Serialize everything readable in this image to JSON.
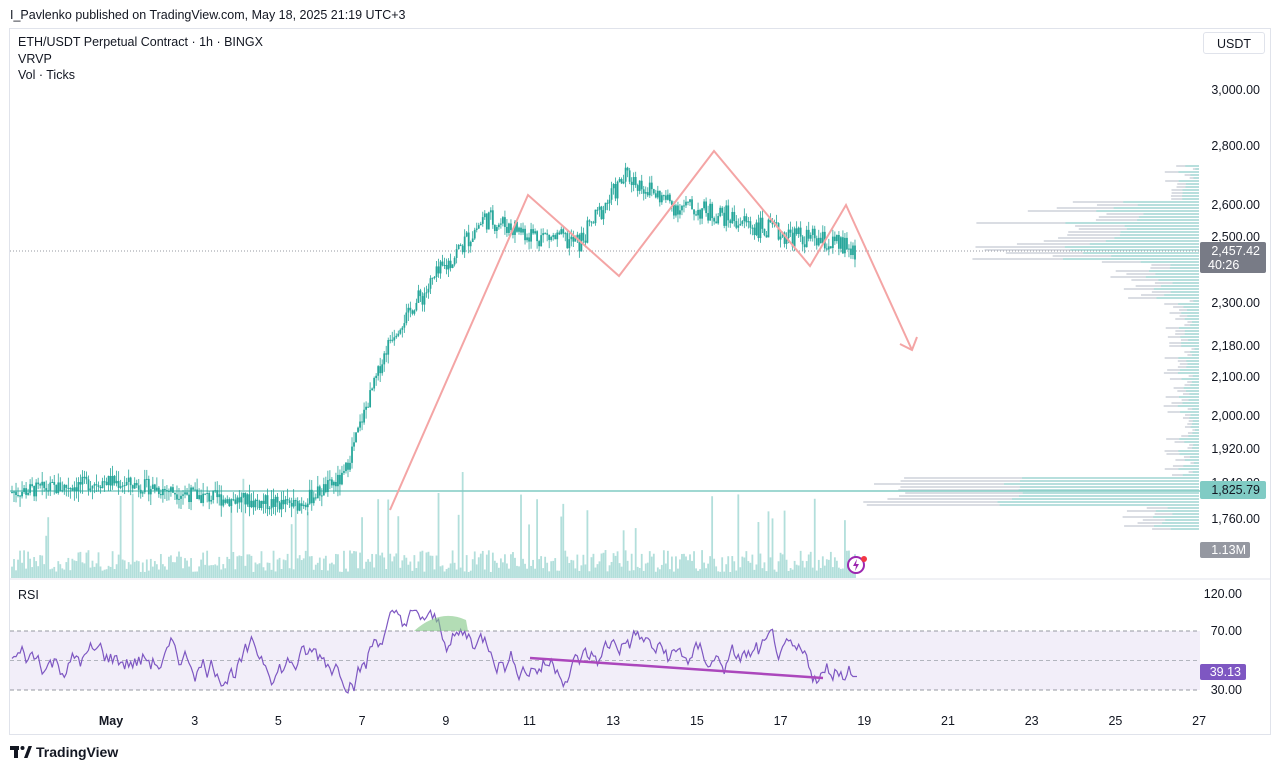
{
  "header": {
    "publisher": "I_Pavlenko published on TradingView.com, May 18, 2025 21:19 UTC+3"
  },
  "legend": {
    "symbol": "ETH/USDT Perpetual Contract · 1h · BINGX",
    "indicator1": "VRVP",
    "indicator2": "Vol · Ticks"
  },
  "toolbar": {
    "currency": "USDT"
  },
  "footer": {
    "brand": "TradingView"
  },
  "rsi_panel": {
    "label": "RSI",
    "value_label": "39.13"
  },
  "price_axis": {
    "ticks": [
      "3,000.00",
      "2,800.00",
      "2,600.00",
      "2,500.00",
      "2,300.00",
      "2,180.00",
      "2,100.00",
      "2,000.00",
      "1,920.00",
      "1,840.00",
      "1,760.00"
    ],
    "current_price": "2,457.42",
    "countdown": "40:26",
    "level_label": "1,825.79",
    "volume_label": "1.13M",
    "rsi_ticks": [
      "120.00",
      "70.00",
      "30.00"
    ]
  },
  "time_axis": {
    "ticks": [
      "May",
      "3",
      "5",
      "7",
      "9",
      "11",
      "13",
      "15",
      "17",
      "19",
      "21",
      "23",
      "25",
      "27"
    ]
  },
  "colors": {
    "candle": "#26a69a",
    "volume": "#b2dfdb",
    "pattern": "#f4a5a5",
    "level": "#80cbc4",
    "rsi_line": "#7e57c2",
    "divergence": "#ab47bc",
    "price_badge": "#787b86",
    "rsi_badge": "#7e57c2"
  },
  "chart_data": {
    "type": "line",
    "series": [
      {
        "values_x": [
          "May 1",
          "May 2",
          "May 3",
          "May 4",
          "May 5",
          "May 6",
          "May 7",
          "May 8",
          "May 9",
          "May 10",
          "May 11",
          "May 12",
          "May 13",
          "May 14",
          "May 15",
          "May 16",
          "May 17",
          "May 18",
          "May 18 21:00"
        ],
        "close": [
          1820,
          1830,
          1845,
          1830,
          1810,
          1800,
          1790,
          1850,
          2200,
          2380,
          2560,
          2510,
          2480,
          2700,
          2600,
          2570,
          2520,
          2490,
          2457.42
        ]
      }
    ],
    "pattern_points": [
      [
        "May 8",
        1770
      ],
      [
        "May 11",
        2650
      ],
      [
        "May 12.8",
        2420
      ],
      [
        "May 15.3",
        2780
      ],
      [
        "May 17.4",
        2440
      ],
      [
        "May 18.6",
        2600
      ],
      [
        "May 20.5",
        2170
      ]
    ],
    "support_level": 1825.79,
    "rsi": {
      "overbought": 70,
      "oversold": 30,
      "last": 39.13,
      "divergence": [
        [
          "May 11",
          52
        ],
        [
          "May 18",
          34
        ]
      ]
    },
    "ylim": [
      1700,
      3100
    ],
    "yscale": "log",
    "grid": false
  }
}
